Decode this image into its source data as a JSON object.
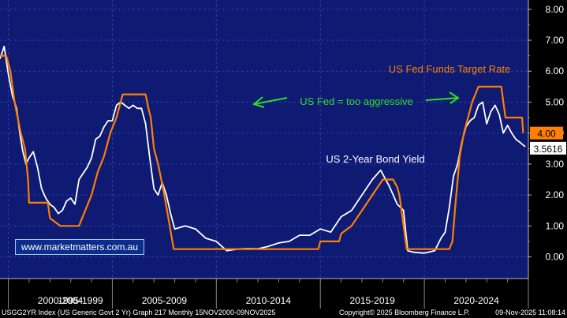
{
  "chart_data": {
    "type": "line",
    "title": "",
    "xlabel": "",
    "ylabel": "",
    "ylim": [
      -0.7,
      8.3
    ],
    "xlim": [
      2000.6,
      2026.0
    ],
    "y_ticks": [
      0,
      1,
      2,
      3,
      4,
      5,
      6,
      7,
      8
    ],
    "y_tick_labels": [
      "0.00",
      "1.00",
      "2.00",
      "3.00",
      "4.00",
      "5.00",
      "6.00",
      "7.00",
      "8.00"
    ],
    "x_period_labels": [
      {
        "label": "1995-1999",
        "from": 1998.0,
        "to": 2001.0
      },
      {
        "label": "2000-2004",
        "from": 2001.0,
        "to": 2006.0
      },
      {
        "label": "2005-2009",
        "from": 2006.0,
        "to": 2011.0
      },
      {
        "label": "2010-2014",
        "from": 2011.0,
        "to": 2016.0
      },
      {
        "label": "2015-2019",
        "from": 2016.0,
        "to": 2021.0
      },
      {
        "label": "2020-2024",
        "from": 2021.0,
        "to": 2026.0
      }
    ],
    "series": [
      {
        "name": "US 2-Year Bond Yield",
        "color": "#ffffff",
        "x": [
          2000.6,
          2000.8,
          2001.0,
          2001.2,
          2001.4,
          2001.55,
          2001.7,
          2001.85,
          2002.0,
          2002.2,
          2002.4,
          2002.6,
          2002.8,
          2003.0,
          2003.2,
          2003.4,
          2003.6,
          2003.8,
          2004.0,
          2004.2,
          2004.4,
          2004.6,
          2004.8,
          2005.0,
          2005.2,
          2005.4,
          2005.6,
          2005.8,
          2006.0,
          2006.2,
          2006.4,
          2006.6,
          2006.8,
          2007.0,
          2007.2,
          2007.4,
          2007.6,
          2007.8,
          2008.0,
          2008.2,
          2008.4,
          2008.6,
          2008.8,
          2009.0,
          2009.5,
          2010.0,
          2010.5,
          2011.0,
          2011.5,
          2012.0,
          2012.5,
          2013.0,
          2013.5,
          2014.0,
          2014.5,
          2015.0,
          2015.5,
          2016.0,
          2016.5,
          2017.0,
          2017.5,
          2018.0,
          2018.5,
          2018.9,
          2019.3,
          2019.7,
          2020.0,
          2020.2,
          2020.5,
          2021.0,
          2021.5,
          2021.8,
          2022.0,
          2022.2,
          2022.4,
          2022.6,
          2022.8,
          2023.0,
          2023.2,
          2023.4,
          2023.6,
          2023.8,
          2024.0,
          2024.2,
          2024.4,
          2024.6,
          2024.8,
          2025.0,
          2025.2,
          2025.4,
          2025.6,
          2025.85
        ],
        "values": [
          6.4,
          6.8,
          5.9,
          5.2,
          4.8,
          4.0,
          3.4,
          3.0,
          3.2,
          3.4,
          2.9,
          2.2,
          1.9,
          1.7,
          1.6,
          1.4,
          1.5,
          1.8,
          1.9,
          1.7,
          2.5,
          2.7,
          2.9,
          3.2,
          3.8,
          3.9,
          4.2,
          4.4,
          4.4,
          4.9,
          5.0,
          4.9,
          4.8,
          4.9,
          4.8,
          4.8,
          4.3,
          3.2,
          2.2,
          2.0,
          2.4,
          2.0,
          1.4,
          0.9,
          1.0,
          0.9,
          0.6,
          0.5,
          0.2,
          0.25,
          0.27,
          0.26,
          0.34,
          0.45,
          0.5,
          0.7,
          0.7,
          0.9,
          0.8,
          1.3,
          1.5,
          2.0,
          2.5,
          2.8,
          2.3,
          1.7,
          1.5,
          0.2,
          0.15,
          0.12,
          0.2,
          0.6,
          0.8,
          1.6,
          2.6,
          3.0,
          3.7,
          4.2,
          4.4,
          4.5,
          4.9,
          5.0,
          4.3,
          4.7,
          4.9,
          4.6,
          4.0,
          4.25,
          4.0,
          3.8,
          3.7,
          3.56
        ]
      },
      {
        "name": "US Fed Funds Target Rate",
        "color": "#ff7f00",
        "x": [
          2000.6,
          2000.9,
          2001.1,
          2001.3,
          2001.45,
          2001.6,
          2001.8,
          2001.95,
          2002.0,
          2002.9,
          2003.0,
          2003.5,
          2004.4,
          2004.7,
          2005.0,
          2005.3,
          2005.6,
          2005.9,
          2006.2,
          2006.5,
          2007.6,
          2007.75,
          2007.85,
          2008.0,
          2008.2,
          2008.5,
          2008.95,
          2015.9,
          2016.0,
          2016.9,
          2017.0,
          2017.5,
          2018.0,
          2018.5,
          2019.0,
          2019.5,
          2019.7,
          2019.8,
          2020.15,
          2022.2,
          2022.35,
          2022.5,
          2022.7,
          2022.9,
          2023.1,
          2023.3,
          2023.6,
          2024.7,
          2024.8,
          2024.9,
          2025.7,
          2025.75
        ],
        "values": [
          6.5,
          6.5,
          6.0,
          5.0,
          4.5,
          4.0,
          3.5,
          2.5,
          1.75,
          1.75,
          1.25,
          1.0,
          1.0,
          1.5,
          2.0,
          2.75,
          3.25,
          4.0,
          4.5,
          5.25,
          5.25,
          4.75,
          4.5,
          3.5,
          3.0,
          2.0,
          0.25,
          0.25,
          0.5,
          0.5,
          0.75,
          1.0,
          1.5,
          2.0,
          2.5,
          2.5,
          2.25,
          2.0,
          0.25,
          0.25,
          0.5,
          1.75,
          3.25,
          4.0,
          4.5,
          5.0,
          5.5,
          5.5,
          5.0,
          4.5,
          4.5,
          4.0
        ]
      }
    ],
    "annotations": {
      "fed_label": "US Fed Funds Target Rate",
      "bond_label": "US 2-Year Bond Yield",
      "aggressive_label": "US Fed = too aggressive"
    },
    "last_values": {
      "fed": "4.00",
      "bond": "3.5616"
    },
    "colors": {
      "background": "#0f1a73",
      "grid": "#2a3fb0",
      "fed": "#ff7f00",
      "bond": "#ffffff",
      "annotation_green": "#33dd22"
    }
  },
  "footer": {
    "left": "USGG2YR Index (US Generic Govt 2 Yr)  Graph 217  Monthly 15NOV2000-09NOV2025",
    "mid": "Copyright© 2025 Bloomberg Finance L.P.",
    "right": "09-Nov-2025 11:08:14"
  },
  "site": "www.marketmatters.com.au"
}
